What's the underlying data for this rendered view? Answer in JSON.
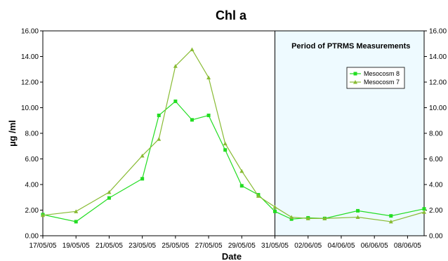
{
  "chart_data": {
    "type": "line",
    "title": "Chl a",
    "xlabel": "Date",
    "ylabel": "µg /ml",
    "ylim": [
      0,
      16
    ],
    "yticks": [
      "0.00",
      "2.00",
      "4.00",
      "6.00",
      "8.00",
      "10.00",
      "12.00",
      "14.00",
      "16.00"
    ],
    "xticks": [
      "17/05/05",
      "19/05/05",
      "21/05/05",
      "23/05/05",
      "25/05/05",
      "27/05/05",
      "29/05/05",
      "31/05/05",
      "02/06/05",
      "04/06/05",
      "06/06/05",
      "08/06/05"
    ],
    "xlim": [
      "17/05/05",
      "09/06/05"
    ],
    "grid": false,
    "legend_position": "top-right",
    "annotation": {
      "text": "Period of PTRMS Measurements",
      "start": "31/05/05",
      "end": "09/06/05",
      "fill": "#eefaff"
    },
    "series": [
      {
        "name": "Mesocosm 8",
        "color": "#22dd22",
        "marker": "square",
        "x": [
          "17/05/05",
          "19/05/05",
          "21/05/05",
          "23/05/05",
          "24/05/05",
          "25/05/05",
          "26/05/05",
          "27/05/05",
          "28/05/05",
          "29/05/05",
          "30/05/05",
          "31/05/05",
          "01/06/05",
          "02/06/05",
          "03/06/05",
          "05/06/05",
          "07/06/05",
          "09/06/05"
        ],
        "values": [
          1.65,
          1.1,
          2.95,
          4.45,
          9.4,
          10.5,
          9.05,
          9.4,
          6.7,
          3.9,
          3.2,
          1.9,
          1.3,
          1.4,
          1.35,
          1.95,
          1.55,
          2.1
        ]
      },
      {
        "name": "Mesocosm 7",
        "color": "#88bb33",
        "marker": "triangle",
        "x": [
          "17/05/05",
          "19/05/05",
          "21/05/05",
          "23/05/05",
          "24/05/05",
          "25/05/05",
          "26/05/05",
          "27/05/05",
          "28/05/05",
          "29/05/05",
          "30/05/05",
          "31/05/05",
          "01/06/05",
          "02/06/05",
          "03/06/05",
          "05/06/05",
          "07/06/05",
          "09/06/05"
        ],
        "values": [
          1.6,
          1.9,
          3.4,
          6.25,
          7.55,
          13.25,
          14.55,
          12.35,
          7.2,
          5.05,
          3.1,
          2.25,
          1.45,
          1.35,
          1.35,
          1.45,
          1.1,
          1.85
        ]
      }
    ]
  }
}
